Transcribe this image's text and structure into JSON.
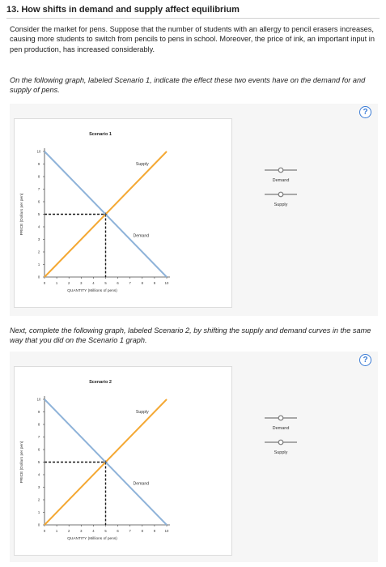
{
  "question": {
    "title": "13. How shifts in demand and supply affect equilibrium",
    "intro": "Consider the market for pens. Suppose that the number of students with an allergy to pencil erasers increases, causing more students to switch from pencils to pens in school. Moreover, the price of ink, an important input in pen production, has increased considerably.",
    "instruction1": "On the following graph, labeled Scenario 1, indicate the effect these two events have on the demand for and supply of pens.",
    "instruction2": "Next, complete the following graph, labeled Scenario 2, by shifting the supply and demand curves in the same way that you did on the Scenario 1 graph.",
    "help_label": "?"
  },
  "legend": {
    "demand_label": "Demand",
    "supply_label": "Supply"
  },
  "colors": {
    "demand": "#8fb3d9",
    "supply": "#f4a833",
    "equilibrium": "#1a1a1a",
    "help": "#3a7bd5"
  },
  "chart_data": [
    {
      "type": "line",
      "title": "Scenario 1",
      "xlabel": "QUANTITY (Millions of pens)",
      "ylabel": "PRICE (Dollars per pen)",
      "xlim": [
        0,
        10
      ],
      "ylim": [
        0,
        10
      ],
      "xticks": [
        0,
        1,
        2,
        3,
        4,
        5,
        6,
        7,
        8,
        9,
        10
      ],
      "yticks": [
        0,
        1,
        2,
        3,
        4,
        5,
        6,
        7,
        8,
        9,
        10
      ],
      "series": [
        {
          "name": "Supply",
          "points": [
            [
              0,
              0
            ],
            [
              10,
              10
            ]
          ]
        },
        {
          "name": "Demand",
          "points": [
            [
              0,
              10
            ],
            [
              10,
              0
            ]
          ]
        }
      ],
      "equilibrium": [
        5,
        5
      ]
    },
    {
      "type": "line",
      "title": "Scenario 2",
      "xlabel": "QUANTITY (Millions of pens)",
      "ylabel": "PRICE (Dollars per pen)",
      "xlim": [
        0,
        10
      ],
      "ylim": [
        0,
        10
      ],
      "xticks": [
        0,
        1,
        2,
        3,
        4,
        5,
        6,
        7,
        8,
        9,
        10
      ],
      "yticks": [
        0,
        1,
        2,
        3,
        4,
        5,
        6,
        7,
        8,
        9,
        10
      ],
      "series": [
        {
          "name": "Supply",
          "points": [
            [
              0,
              0
            ],
            [
              10,
              10
            ]
          ]
        },
        {
          "name": "Demand",
          "points": [
            [
              0,
              10
            ],
            [
              10,
              0
            ]
          ]
        }
      ],
      "equilibrium": [
        5,
        5
      ]
    }
  ]
}
